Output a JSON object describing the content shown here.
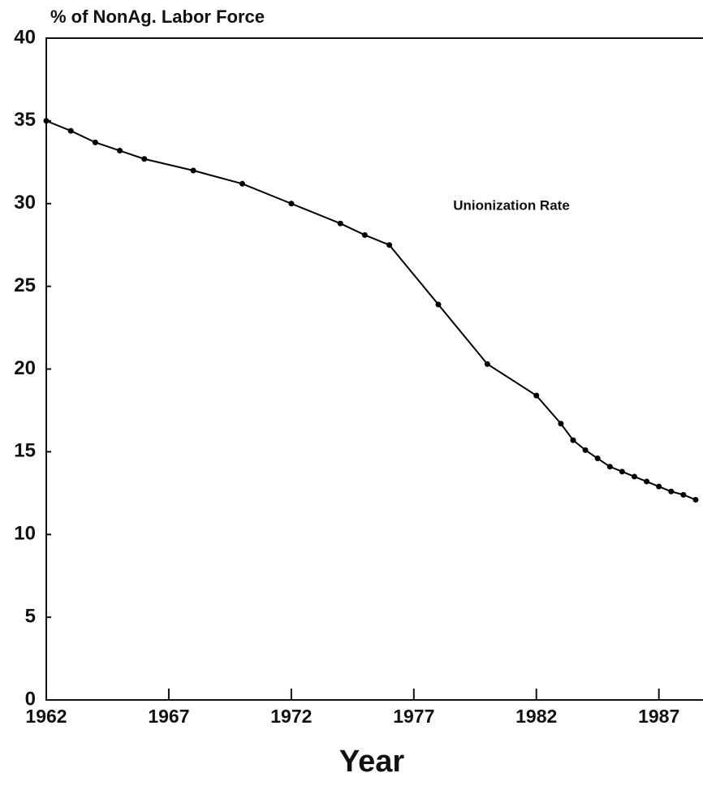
{
  "chart_data": {
    "type": "line",
    "y_label": "% of NonAg. Labor Force",
    "x_label": "Year",
    "annotation": "Unionization Rate",
    "x": [
      1962,
      1963,
      1964,
      1965,
      1966,
      1968,
      1970,
      1972,
      1974,
      1975,
      1976,
      1978,
      1980,
      1982,
      1983,
      1983.5,
      1984,
      1984.5,
      1985,
      1985.5,
      1986,
      1986.5,
      1987,
      1987.5,
      1988,
      1988.5
    ],
    "series": [
      {
        "name": "Unionization Rate",
        "color": "#000000",
        "values": [
          35.0,
          34.4,
          33.7,
          33.2,
          32.7,
          32.0,
          31.2,
          30.0,
          28.8,
          28.1,
          27.5,
          23.9,
          20.3,
          18.4,
          16.7,
          15.7,
          15.1,
          14.6,
          14.1,
          13.8,
          13.5,
          13.2,
          12.9,
          12.6,
          12.4,
          12.1
        ]
      }
    ],
    "xlim": [
      1962,
      1988.8
    ],
    "ylim": [
      0,
      40
    ],
    "xticks": [
      1962,
      1967,
      1972,
      1977,
      1982,
      1987
    ],
    "yticks": [
      0,
      5,
      10,
      15,
      20,
      25,
      30,
      35,
      40
    ],
    "grid": false
  }
}
